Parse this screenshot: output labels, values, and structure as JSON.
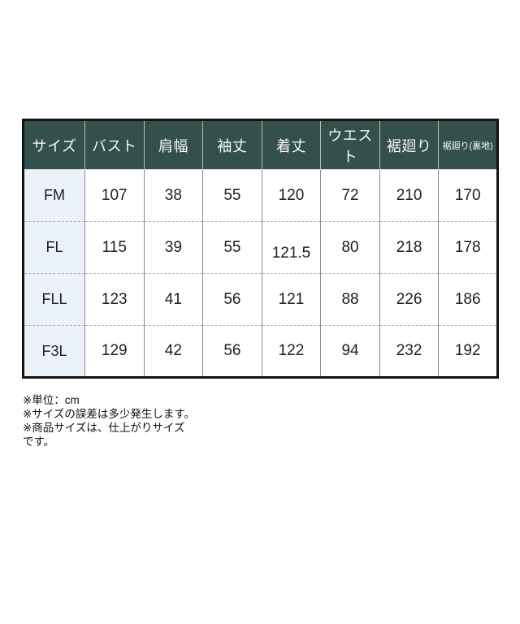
{
  "table": {
    "headers": [
      "サイズ",
      "バスト",
      "肩幅",
      "袖丈",
      "着丈",
      "ウエスト",
      "裾廻り",
      "裾廻り(裏地)"
    ],
    "rows": [
      {
        "size": "FM",
        "values": [
          "107",
          "38",
          "55",
          "120",
          "72",
          "210",
          "170"
        ]
      },
      {
        "size": "FL",
        "values": [
          "115",
          "39",
          "55",
          "121.5",
          "80",
          "218",
          "178"
        ]
      },
      {
        "size": "FLL",
        "values": [
          "123",
          "41",
          "56",
          "121",
          "88",
          "226",
          "186"
        ]
      },
      {
        "size": "F3L",
        "values": [
          "129",
          "42",
          "56",
          "122",
          "94",
          "232",
          "192"
        ]
      }
    ]
  },
  "footnotes": {
    "line1": "※単位：cm",
    "line2": "※サイズの誤差は多少発生します。",
    "line3": "※商品サイズは、仕上がりサイズ",
    "line4": "です。"
  },
  "colors": {
    "header_bg": "#33504c",
    "header_text": "#f4f8f7",
    "size_column_bg": "#ebf2fa",
    "outer_border": "#141414",
    "body_text": "#1f1f1f"
  },
  "chart_data": {
    "type": "table",
    "title": "サイズ表",
    "unit": "cm",
    "columns": [
      "サイズ",
      "バスト",
      "肩幅",
      "袖丈",
      "着丈",
      "ウエスト",
      "裾廻り",
      "裾廻り(裏地)"
    ],
    "rows": [
      [
        "FM",
        107,
        38,
        55,
        120,
        72,
        210,
        170
      ],
      [
        "FL",
        115,
        39,
        55,
        121.5,
        80,
        218,
        178
      ],
      [
        "FLL",
        123,
        41,
        56,
        121,
        88,
        226,
        186
      ],
      [
        "F3L",
        129,
        42,
        56,
        122,
        94,
        232,
        192
      ]
    ],
    "notes": [
      "※単位：cm",
      "※サイズの誤差は多少発生します。",
      "※商品サイズは、仕上がりサイズです。"
    ]
  }
}
